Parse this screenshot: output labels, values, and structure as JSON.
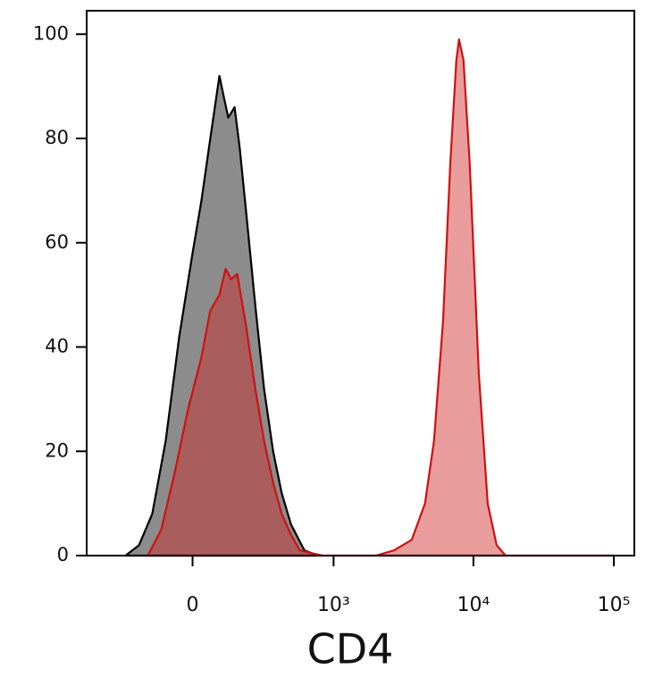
{
  "chart_data": {
    "type": "area",
    "x_label": "CD4",
    "xscale": "biexponential",
    "xlim": [
      -550,
      140000
    ],
    "xticks": [
      0,
      {
        "value": 1000,
        "label": "10³"
      },
      {
        "value": 10000,
        "label": "10⁴"
      },
      {
        "value": 100000,
        "label": "10⁵"
      }
    ],
    "ylim": [
      0,
      104.5
    ],
    "yticks": [
      0,
      20,
      40,
      60,
      80,
      100
    ],
    "series": [
      {
        "color": "#808080",
        "stroke": "#000000",
        "x": [
          -267,
          -199,
          -142,
          -91,
          -44,
          0,
          29,
          59,
          91,
          107,
          124,
          149,
          171,
          199,
          244,
          292,
          348,
          408,
          482,
          610,
          766
        ],
        "values": [
          0,
          2,
          8,
          22,
          42,
          58,
          68,
          80,
          92,
          88,
          84,
          86,
          78,
          66,
          48,
          32,
          20,
          12,
          6,
          1,
          0
        ]
      },
      {
        "color": "#cf2323",
        "stroke": "#d01010",
        "x": [
          -160,
          -107,
          -59,
          -15,
          29,
          59,
          91,
          114,
          135,
          160,
          199,
          244,
          292,
          348,
          408,
          482,
          564,
          828,
          2016,
          2710,
          3632,
          4520,
          5240,
          6080,
          6840,
          7560,
          7900,
          8500,
          9420,
          10920,
          12640,
          14640,
          16960,
          100000
        ],
        "values": [
          0,
          5,
          16,
          28,
          38,
          47,
          50,
          55,
          53,
          54,
          44,
          32,
          22,
          14,
          8,
          4,
          1,
          0,
          0,
          1,
          3,
          10,
          22,
          45,
          75,
          95,
          99,
          95,
          75,
          35,
          10,
          2,
          0,
          0
        ]
      }
    ]
  }
}
